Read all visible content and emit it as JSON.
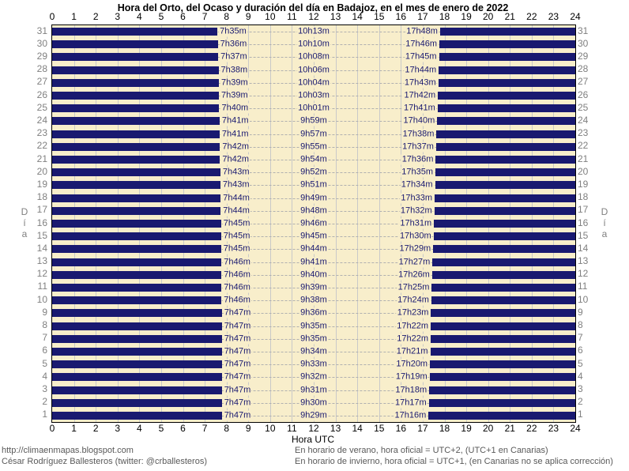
{
  "chart_data": {
    "type": "bar",
    "subtype": "horizontal-night-day-bands",
    "title": "Hora del Orto, del Ocaso y duración del día en Badajoz, en el mes de enero de 2022",
    "xlabel": "Hora UTC",
    "ylabel": "Día",
    "xlim": [
      0,
      24
    ],
    "x_tick_labels": [
      "0",
      "1",
      "2",
      "3",
      "4",
      "5",
      "6",
      "7",
      "8",
      "9",
      "10",
      "11",
      "12",
      "13",
      "14",
      "15",
      "16",
      "17",
      "18",
      "19",
      "20",
      "21",
      "22",
      "23",
      "24"
    ],
    "legend": "dark bars = night (00:00 to sunrise, sunset to 24:00); light band = daylight with sunrise, day length and sunset labels",
    "days": [
      {
        "day": 31,
        "sunrise": "7h35m",
        "daylength": "10h13m",
        "sunset": "17h48m"
      },
      {
        "day": 30,
        "sunrise": "7h36m",
        "daylength": "10h10m",
        "sunset": "17h46m"
      },
      {
        "day": 29,
        "sunrise": "7h37m",
        "daylength": "10h08m",
        "sunset": "17h45m"
      },
      {
        "day": 28,
        "sunrise": "7h38m",
        "daylength": "10h06m",
        "sunset": "17h44m"
      },
      {
        "day": 27,
        "sunrise": "7h39m",
        "daylength": "10h04m",
        "sunset": "17h43m"
      },
      {
        "day": 26,
        "sunrise": "7h39m",
        "daylength": "10h03m",
        "sunset": "17h42m"
      },
      {
        "day": 25,
        "sunrise": "7h40m",
        "daylength": "10h01m",
        "sunset": "17h41m"
      },
      {
        "day": 24,
        "sunrise": "7h41m",
        "daylength": "9h59m",
        "sunset": "17h40m"
      },
      {
        "day": 23,
        "sunrise": "7h41m",
        "daylength": "9h57m",
        "sunset": "17h38m"
      },
      {
        "day": 22,
        "sunrise": "7h42m",
        "daylength": "9h55m",
        "sunset": "17h37m"
      },
      {
        "day": 21,
        "sunrise": "7h42m",
        "daylength": "9h54m",
        "sunset": "17h36m"
      },
      {
        "day": 20,
        "sunrise": "7h43m",
        "daylength": "9h52m",
        "sunset": "17h35m"
      },
      {
        "day": 19,
        "sunrise": "7h43m",
        "daylength": "9h51m",
        "sunset": "17h34m"
      },
      {
        "day": 18,
        "sunrise": "7h44m",
        "daylength": "9h49m",
        "sunset": "17h33m"
      },
      {
        "day": 17,
        "sunrise": "7h44m",
        "daylength": "9h48m",
        "sunset": "17h32m"
      },
      {
        "day": 16,
        "sunrise": "7h45m",
        "daylength": "9h46m",
        "sunset": "17h31m"
      },
      {
        "day": 15,
        "sunrise": "7h45m",
        "daylength": "9h45m",
        "sunset": "17h30m"
      },
      {
        "day": 14,
        "sunrise": "7h45m",
        "daylength": "9h44m",
        "sunset": "17h29m"
      },
      {
        "day": 13,
        "sunrise": "7h46m",
        "daylength": "9h41m",
        "sunset": "17h27m"
      },
      {
        "day": 12,
        "sunrise": "7h46m",
        "daylength": "9h40m",
        "sunset": "17h26m"
      },
      {
        "day": 11,
        "sunrise": "7h46m",
        "daylength": "9h39m",
        "sunset": "17h25m"
      },
      {
        "day": 10,
        "sunrise": "7h46m",
        "daylength": "9h38m",
        "sunset": "17h24m"
      },
      {
        "day": 9,
        "sunrise": "7h47m",
        "daylength": "9h36m",
        "sunset": "17h23m"
      },
      {
        "day": 8,
        "sunrise": "7h47m",
        "daylength": "9h35m",
        "sunset": "17h22m"
      },
      {
        "day": 7,
        "sunrise": "7h47m",
        "daylength": "9h35m",
        "sunset": "17h22m"
      },
      {
        "day": 6,
        "sunrise": "7h47m",
        "daylength": "9h34m",
        "sunset": "17h21m"
      },
      {
        "day": 5,
        "sunrise": "7h47m",
        "daylength": "9h33m",
        "sunset": "17h20m"
      },
      {
        "day": 4,
        "sunrise": "7h47m",
        "daylength": "9h32m",
        "sunset": "17h19m"
      },
      {
        "day": 3,
        "sunrise": "7h47m",
        "daylength": "9h31m",
        "sunset": "17h18m"
      },
      {
        "day": 2,
        "sunrise": "7h47m",
        "daylength": "9h30m",
        "sunset": "17h17m"
      },
      {
        "day": 1,
        "sunrise": "7h47m",
        "daylength": "9h29m",
        "sunset": "17h16m"
      }
    ]
  },
  "colors": {
    "night_bar": "#191970",
    "plot_background": "#f8eecb",
    "grid_line": "#c9c9c9",
    "dashed_line": "#b0b0b0",
    "axis_text": "#000000",
    "day_number_text": "#808080",
    "footer_text": "#595959"
  },
  "footer": {
    "left_line1": "http://climaenmapas.blogspot.com",
    "left_line2": "César Rodríguez Ballesteros (twitter: @crballesteros)",
    "right_line1": "En horario de verano, hora oficial = UTC+2, (UTC+1 en Canarias)",
    "right_line2": "En horario de invierno, hora oficial = UTC+1, (en Canarias no se aplica corrección)"
  }
}
